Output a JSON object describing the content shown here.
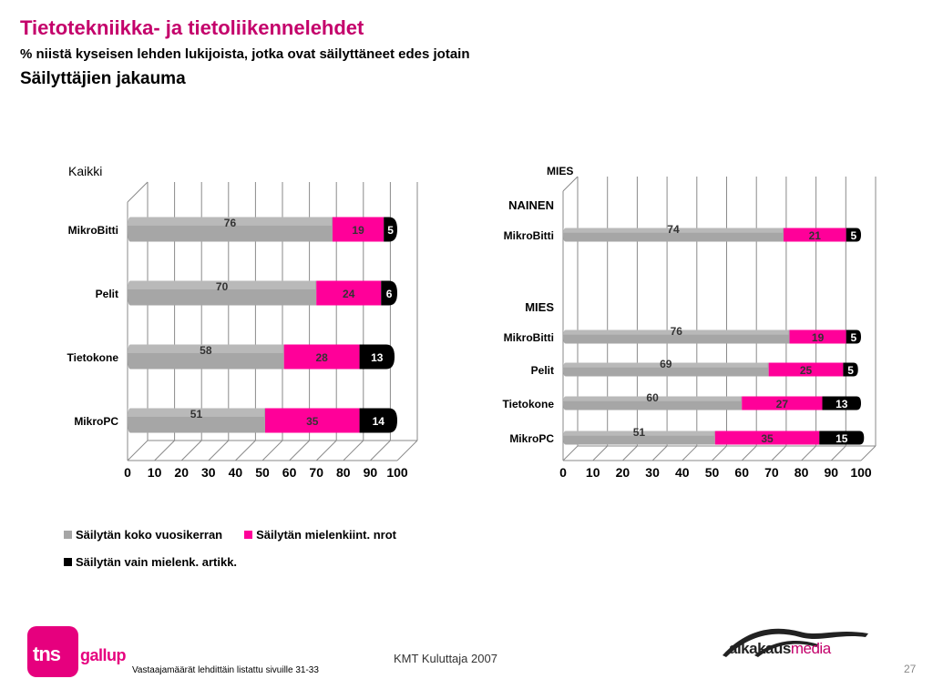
{
  "header": {
    "title": "Tietotekniikka- ja tietoliikennelehdet",
    "subtitle": "% niistä kyseisen lehden lukijoista, jotka ovat säilyttäneet edes jotain",
    "subtitle2": "Säilyttäjien jakauma"
  },
  "colors": {
    "series1": "#a6a6a6",
    "series2": "#ff0099",
    "series3": "#000000",
    "title": "#c4006b"
  },
  "chart_data": [
    {
      "type": "bar",
      "stacked": true,
      "orientation": "horizontal",
      "title": "Kaikki",
      "categories": [
        "MikroBitti",
        "Pelit",
        "Tietokone",
        "MikroPC"
      ],
      "series": [
        {
          "name": "Säilytän koko vuosikerran",
          "values": [
            76,
            70,
            58,
            51
          ]
        },
        {
          "name": "Säilytän mielenkiint. nrot",
          "values": [
            19,
            24,
            28,
            35
          ]
        },
        {
          "name": "Säilytän vain mielenk. artikk.",
          "values": [
            5,
            6,
            13,
            14
          ]
        }
      ],
      "xlim": [
        0,
        100
      ],
      "xticks": [
        "0",
        "10",
        "20",
        "30",
        "40",
        "50",
        "60",
        "70",
        "80",
        "90",
        "100"
      ],
      "grid": true
    },
    {
      "type": "bar",
      "stacked": true,
      "orientation": "horizontal",
      "title": "MIES",
      "groups": [
        {
          "label": "NAINEN",
          "categories": [
            "MikroBitti"
          ]
        },
        {
          "label": "MIES",
          "categories": [
            "MikroBitti",
            "Pelit",
            "Tietokone",
            "MikroPC"
          ]
        }
      ],
      "categories": [
        "MikroBitti",
        "MikroBitti",
        "Pelit",
        "Tietokone",
        "MikroPC"
      ],
      "series": [
        {
          "name": "Säilytän koko vuosikerran",
          "values": [
            74,
            76,
            69,
            60,
            51
          ]
        },
        {
          "name": "Säilytän mielenkiint. nrot",
          "values": [
            21,
            19,
            25,
            27,
            35
          ]
        },
        {
          "name": "Säilytän vain mielenk. artikk.",
          "values": [
            5,
            5,
            5,
            13,
            15
          ]
        }
      ],
      "xlim": [
        0,
        100
      ],
      "xticks": [
        "0",
        "10",
        "20",
        "30",
        "40",
        "50",
        "60",
        "70",
        "80",
        "90",
        "100"
      ],
      "grid": true
    }
  ],
  "legend": {
    "items": [
      "Säilytän koko vuosikerran",
      "Säilytän mielenkiint. nrot",
      "Säilytän vain mielenk. artikk."
    ]
  },
  "footer": {
    "note": "Vastaajamäärät lehdittäin listattu sivuille 31-33",
    "source": "KMT Kuluttaja 2007",
    "page": "27",
    "logo_left_a": "tns",
    "logo_left_b": "gallup",
    "logo_right_a": "aikakaus",
    "logo_right_b": "media"
  }
}
